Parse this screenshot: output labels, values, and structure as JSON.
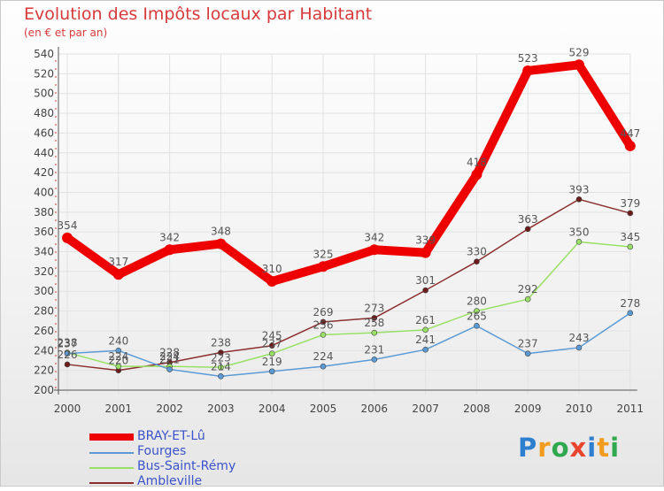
{
  "chart_data": {
    "type": "line",
    "title": "Evolution des Impôts locaux par Habitant",
    "subtitle": "(en € et par an)",
    "xlabel": "",
    "ylabel": "",
    "ylim": [
      200,
      540
    ],
    "yticks": [
      200,
      220,
      240,
      260,
      280,
      300,
      320,
      340,
      360,
      380,
      400,
      420,
      440,
      460,
      480,
      500,
      520,
      540
    ],
    "categories": [
      "2000",
      "2001",
      "2002",
      "2003",
      "2004",
      "2005",
      "2006",
      "2007",
      "2008",
      "2009",
      "2010",
      "2011"
    ],
    "grid": true,
    "series": [
      {
        "name": "BRAY-ET-Lû",
        "color": "#ee0000",
        "values": [
          354,
          317,
          342,
          348,
          310,
          325,
          342,
          339,
          418,
          523,
          529,
          447
        ]
      },
      {
        "name": "Fourges",
        "color": "#5b9bd5",
        "values": [
          237,
          240,
          221,
          214,
          219,
          224,
          231,
          241,
          265,
          237,
          243,
          278
        ]
      },
      {
        "name": "Bus-Saint-Rémy",
        "color": "#99e066",
        "values": [
          238,
          224,
          224,
          223,
          237,
          256,
          258,
          261,
          280,
          292,
          350,
          345
        ]
      },
      {
        "name": "Ambleville",
        "color": "#8b2e2e",
        "values": [
          226,
          220,
          228,
          238,
          245,
          269,
          273,
          301,
          330,
          363,
          393,
          379
        ]
      }
    ],
    "data_labels": [
      [
        "354",
        "317",
        "342",
        "348",
        "310",
        "325",
        "342",
        "339",
        "418",
        "523",
        "529",
        "447"
      ],
      [
        "237",
        "240",
        "221",
        "214",
        "219",
        "224",
        "231",
        "241",
        "265",
        "237",
        "243",
        "278"
      ],
      [
        "238",
        "224",
        "224",
        "223",
        "237",
        "256",
        "258",
        "261",
        "280",
        "292",
        "350",
        "345"
      ],
      [
        "226",
        "220",
        "228",
        "238",
        "245",
        "269",
        "273",
        "301",
        "330",
        "363",
        "393",
        "379"
      ]
    ],
    "legend_position": "bottom-left"
  },
  "logo": {
    "text": "Proxiti",
    "letters": [
      {
        "ch": "P",
        "color": "#2f7fd0"
      },
      {
        "ch": "r",
        "color": "#f29b1d"
      },
      {
        "ch": "o",
        "color": "#2fa84f"
      },
      {
        "ch": "x",
        "color": "#e8452c"
      },
      {
        "ch": "i",
        "color": "#2f7fd0"
      },
      {
        "ch": "t",
        "color": "#f29b1d"
      },
      {
        "ch": "i",
        "color": "#2fa84f"
      }
    ]
  }
}
